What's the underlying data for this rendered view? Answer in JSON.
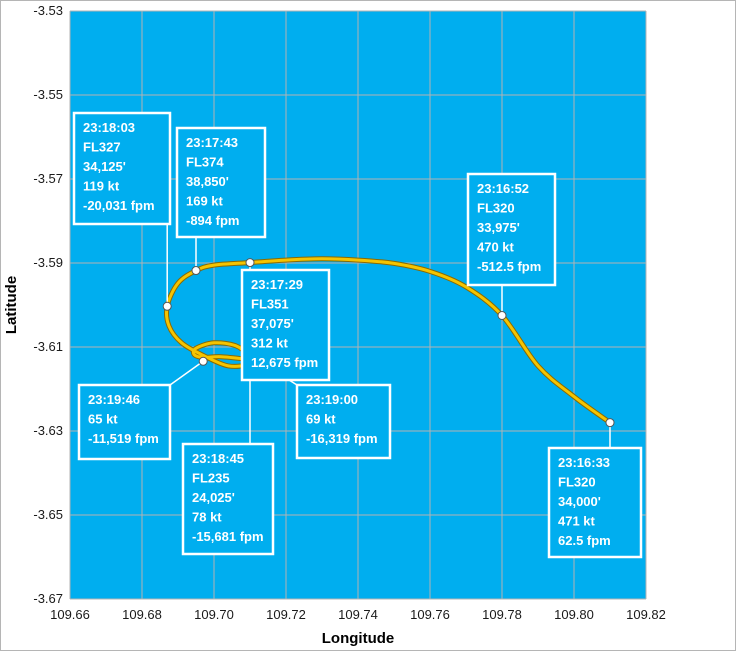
{
  "chart_data": {
    "type": "scatter",
    "xlabel": "Longitude",
    "ylabel": "Latitude",
    "xlim": [
      109.66,
      109.82
    ],
    "ylim": [
      -3.67,
      -3.53
    ],
    "x_ticks": [
      "109.66",
      "109.68",
      "109.70",
      "109.72",
      "109.74",
      "109.76",
      "109.78",
      "109.80",
      "109.82"
    ],
    "y_ticks": [
      "-3.53",
      "-3.55",
      "-3.57",
      "-3.59",
      "-3.61",
      "-3.63",
      "-3.65",
      "-3.67"
    ],
    "grid": true,
    "colors": {
      "plot_background": "#00aeef",
      "track": "#f5c400",
      "track_outline": "#8a6a00",
      "grid": "#b3b3b3",
      "callout_border": "#ffffff",
      "marker_fill": "#ffffff"
    },
    "track": [
      [
        109.81,
        -3.628
      ],
      [
        109.8,
        -3.6218
      ],
      [
        109.79,
        -3.6145
      ],
      [
        109.78,
        -3.6025
      ],
      [
        109.77,
        -3.5957
      ],
      [
        109.76,
        -3.592
      ],
      [
        109.75,
        -3.5901
      ],
      [
        109.74,
        -3.5893
      ],
      [
        109.73,
        -3.589
      ],
      [
        109.72,
        -3.5893
      ],
      [
        109.71,
        -3.5899
      ],
      [
        109.7,
        -3.5905
      ],
      [
        109.695,
        -3.5918
      ],
      [
        109.69,
        -3.5948
      ],
      [
        109.687,
        -3.6003
      ],
      [
        109.6875,
        -3.605
      ],
      [
        109.691,
        -3.609
      ],
      [
        109.697,
        -3.612
      ],
      [
        109.704,
        -3.6145
      ],
      [
        109.71,
        -3.614
      ],
      [
        109.7095,
        -3.612
      ],
      [
        109.706,
        -3.6097
      ],
      [
        109.7,
        -3.609
      ],
      [
        109.695,
        -3.6103
      ],
      [
        109.6945,
        -3.6118
      ],
      [
        109.697,
        -3.6125
      ],
      [
        109.702,
        -3.6123
      ],
      [
        109.71,
        -3.613
      ]
    ],
    "points": [
      {
        "x": 109.81,
        "y": -3.628,
        "lines": [
          "23:16:33",
          "FL320",
          "34,000'",
          "471 kt",
          "62.5 fpm"
        ]
      },
      {
        "x": 109.78,
        "y": -3.6025,
        "lines": [
          "23:16:52",
          "FL320",
          "33,975'",
          "470 kt",
          "-512.5 fpm"
        ]
      },
      {
        "x": 109.71,
        "y": -3.5899,
        "lines": [
          "23:17:29",
          "FL351",
          "37,075'",
          "312 kt",
          "12,675 fpm"
        ]
      },
      {
        "x": 109.695,
        "y": -3.5918,
        "lines": [
          "23:17:43",
          "FL374",
          "38,850'",
          "169 kt",
          "-894 fpm"
        ]
      },
      {
        "x": 109.687,
        "y": -3.6003,
        "lines": [
          "23:18:03",
          "FL327",
          "34,125'",
          "119 kt",
          "-20,031 fpm"
        ]
      },
      {
        "x": 109.71,
        "y": -3.613,
        "lines": [
          "23:18:45",
          "FL235",
          "24,025'",
          "78 kt",
          "-15,681 fpm"
        ]
      },
      {
        "x": 109.71,
        "y": -3.612,
        "lines": [
          "23:19:00",
          "69 kt",
          "-16,319 fpm"
        ]
      },
      {
        "x": 109.697,
        "y": -3.6134,
        "lines": [
          "23:19:46",
          "65 kt",
          "-11,519 fpm"
        ]
      }
    ]
  }
}
